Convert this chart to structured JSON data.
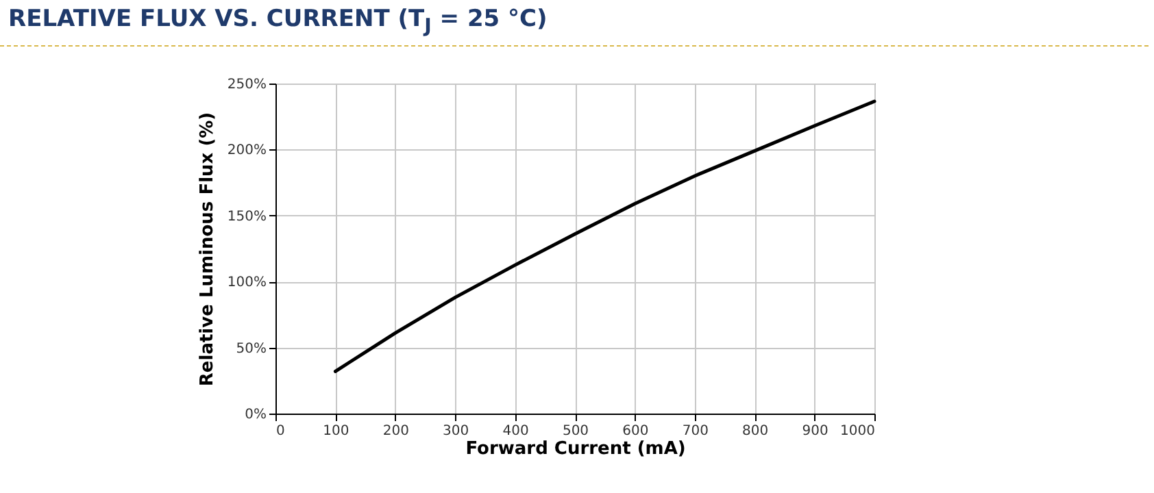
{
  "chart_data": {
    "type": "line",
    "title": "RELATIVE FLUX VS. CURRENT (T$_{J}$ = 25 °C)",
    "xlabel": "Forward Current (mA)",
    "ylabel": "Relative Luminous Flux (%)",
    "x": [
      100,
      200,
      300,
      400,
      500,
      600,
      700,
      800,
      900,
      1000
    ],
    "series": [
      {
        "color": "#000000",
        "values": [
          32,
          61,
          88,
          112.5,
          136,
          159,
          180,
          199,
          218,
          236.5
        ]
      }
    ],
    "xlim": [
      0,
      1000
    ],
    "xticks": [
      0,
      100,
      200,
      300,
      400,
      500,
      600,
      700,
      800,
      900,
      1000
    ],
    "ylim": [
      0,
      250
    ],
    "yticks": [
      {
        "value": 0,
        "label": "0%"
      },
      {
        "value": 50,
        "label": "50%"
      },
      {
        "value": 100,
        "label": "100%"
      },
      {
        "value": 150,
        "label": "150%"
      },
      {
        "value": 200,
        "label": "200%"
      },
      {
        "value": 250,
        "label": "250%"
      }
    ],
    "grid": true,
    "line_style": "solid",
    "marker": "none",
    "legend": false
  }
}
